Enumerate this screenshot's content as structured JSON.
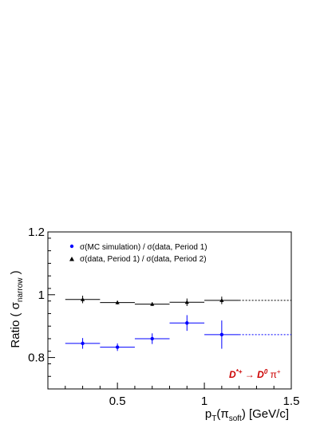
{
  "chart_data": {
    "type": "scatter",
    "xlabel": "p_T(π_soft)  [GeV/c]",
    "ylabel": "Ratio ( σ_narrow )",
    "xlim": [
      0.1,
      1.5
    ],
    "ylim": [
      0.7,
      1.2
    ],
    "x_ticks": [
      0.5,
      1,
      1.5
    ],
    "x_tick_labels": [
      "0.5",
      "1",
      "1.5"
    ],
    "y_ticks": [
      0.8,
      1,
      1.2
    ],
    "y_tick_labels": [
      "0.8",
      "1",
      "1.2"
    ],
    "grid": false,
    "legend_position": "top-left",
    "annotation": "D*+ → D0 π+",
    "series": [
      {
        "name": "σ(MC simulation) / σ(data, Period 1)",
        "color": "#0000ff",
        "marker": "circle",
        "x": [
          0.3,
          0.5,
          0.7,
          0.9,
          1.1
        ],
        "x_half_width": [
          0.1,
          0.1,
          0.1,
          0.1,
          0.1
        ],
        "y": [
          0.845,
          0.833,
          0.86,
          0.91,
          0.873
        ],
        "y_err": [
          0.017,
          0.012,
          0.017,
          0.025,
          0.045
        ],
        "extrapolation": {
          "from_x": 1.2,
          "to_x": 1.5,
          "y": 0.873
        }
      },
      {
        "name": "σ(data, Period 1) / σ(data, Period 2)",
        "color": "#000000",
        "marker": "triangle",
        "x": [
          0.3,
          0.5,
          0.7,
          0.9,
          1.1
        ],
        "x_half_width": [
          0.1,
          0.1,
          0.1,
          0.1,
          0.1
        ],
        "y": [
          0.985,
          0.975,
          0.97,
          0.976,
          0.982
        ],
        "y_err": [
          0.012,
          0.006,
          0.006,
          0.012,
          0.012
        ],
        "extrapolation": {
          "from_x": 1.2,
          "to_x": 1.5,
          "y": 0.982
        }
      }
    ]
  }
}
